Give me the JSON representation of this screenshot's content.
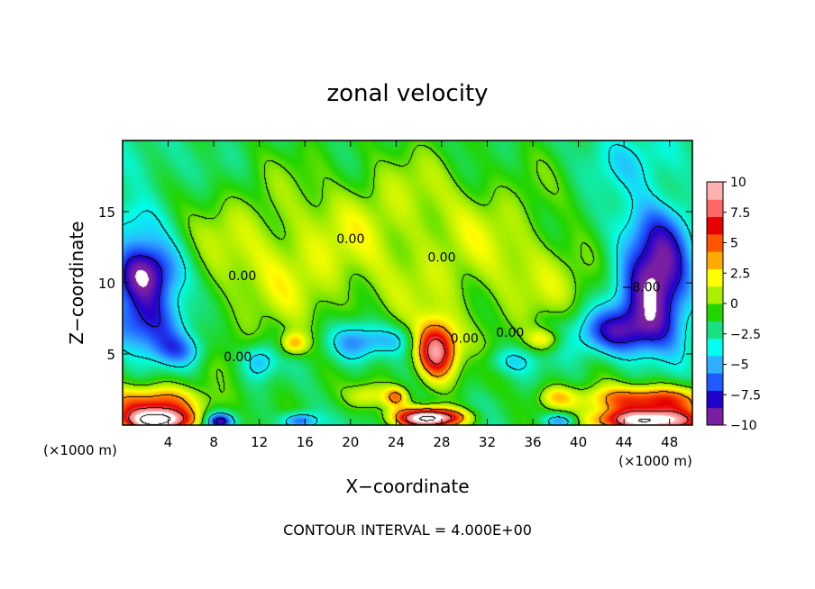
{
  "chart_data": {
    "type": "heatmap",
    "title": "zonal velocity",
    "xlabel": "X−coordinate",
    "ylabel": "Z−coordinate",
    "x_unit_left": "(×1000 m)",
    "x_unit_right": "(×1000 m)",
    "footer": "CONTOUR INTERVAL = 4.000E+00",
    "xlim": [
      0,
      50
    ],
    "ylim": [
      0,
      20
    ],
    "x_ticks": [
      4,
      8,
      12,
      16,
      20,
      24,
      28,
      32,
      36,
      40,
      44,
      48
    ],
    "x_tick_labels": [
      "4",
      "8",
      "12",
      "16",
      "20",
      "24",
      "28",
      "32",
      "36",
      "40",
      "44",
      "48"
    ],
    "y_ticks": [
      5,
      10,
      15
    ],
    "y_tick_labels": [
      "5",
      "10",
      "15"
    ],
    "colorbar": {
      "range": [
        -10,
        10
      ],
      "ticks": [
        10,
        7.5,
        5,
        2.5,
        0,
        -2.5,
        -5,
        -7.5,
        -10
      ],
      "tick_labels": [
        "10",
        "7.5",
        "5",
        "2.5",
        "0",
        "−2.5",
        "−5",
        "−7.5",
        "−10"
      ],
      "colors": [
        "#7b1fa2",
        "#2200cc",
        "#1e5cff",
        "#2fb0ff",
        "#00ffee",
        "#19e080",
        "#22d400",
        "#aaee00",
        "#ffff00",
        "#ffaa00",
        "#ff5500",
        "#e60000",
        "#ff6666",
        "#ffb0b0"
      ]
    },
    "contour_interval": 4,
    "contour_labels": [
      {
        "text": "0.00",
        "x": 10.5,
        "z": 10.2
      },
      {
        "text": "0.00",
        "x": 20.0,
        "z": 12.8
      },
      {
        "text": "0.00",
        "x": 28.0,
        "z": 11.5
      },
      {
        "text": "0.00",
        "x": 10.1,
        "z": 4.5
      },
      {
        "text": "0.00",
        "x": 30.0,
        "z": 5.8
      },
      {
        "text": "0.00",
        "x": 34.0,
        "z": 6.2
      },
      {
        "text": "−8.00",
        "x": 45.5,
        "z": 9.4
      }
    ],
    "features": [
      {
        "x": 2.0,
        "z": 10.5,
        "rx": 3.5,
        "rz": 2.6,
        "v": -11
      },
      {
        "x": 2.0,
        "z": 7.0,
        "rx": 4.0,
        "rz": 2.0,
        "v": -6
      },
      {
        "x": 5.0,
        "z": 5.2,
        "rx": 2.5,
        "rz": 1.2,
        "v": -4
      },
      {
        "x": 0.5,
        "z": 14.5,
        "rx": 3.0,
        "rz": 1.8,
        "v": -3
      },
      {
        "x": 47.0,
        "z": 10.0,
        "rx": 3.5,
        "rz": 4.0,
        "v": -11.5
      },
      {
        "x": 43.0,
        "z": 6.5,
        "rx": 4.0,
        "rz": 1.8,
        "v": -7
      },
      {
        "x": 45.0,
        "z": 14.0,
        "rx": 5.0,
        "rz": 2.5,
        "v": -3
      },
      {
        "x": 20.5,
        "z": 5.8,
        "rx": 2.5,
        "rz": 1.5,
        "v": -6
      },
      {
        "x": 12.0,
        "z": 4.5,
        "rx": 1.5,
        "rz": 1.2,
        "v": -4
      },
      {
        "x": 24.0,
        "z": 6.0,
        "rx": 2.0,
        "rz": 1.0,
        "v": -2.5
      },
      {
        "x": 34.0,
        "z": 4.5,
        "rx": 2.5,
        "rz": 1.0,
        "v": -3
      },
      {
        "x": 27.5,
        "z": 5.2,
        "rx": 1.8,
        "rz": 2.0,
        "v": 11
      },
      {
        "x": 37.0,
        "z": 6.0,
        "rx": 1.5,
        "rz": 0.8,
        "v": 4
      },
      {
        "x": 15.0,
        "z": 5.7,
        "rx": 1.2,
        "rz": 0.8,
        "v": 5
      },
      {
        "x": 2.5,
        "z": 1.5,
        "rx": 5.0,
        "rz": 1.3,
        "v": 7
      },
      {
        "x": 3.0,
        "z": 0.3,
        "rx": 3.0,
        "rz": 0.8,
        "v": 12
      },
      {
        "x": 46.0,
        "z": 1.8,
        "rx": 6.0,
        "rz": 1.0,
        "v": 8
      },
      {
        "x": 46.0,
        "z": 0.3,
        "rx": 5.0,
        "rz": 0.8,
        "v": 13
      },
      {
        "x": 27.0,
        "z": 0.5,
        "rx": 3.0,
        "rz": 0.7,
        "v": 14
      },
      {
        "x": 8.5,
        "z": 0.3,
        "rx": 1.2,
        "rz": 0.6,
        "v": -7
      },
      {
        "x": 15.5,
        "z": 0.3,
        "rx": 1.5,
        "rz": 0.6,
        "v": -6
      },
      {
        "x": 38.5,
        "z": 0.3,
        "rx": 1.5,
        "rz": 0.6,
        "v": -6
      },
      {
        "x": 21.5,
        "z": 2.0,
        "rx": 2.0,
        "rz": 1.0,
        "v": 4
      },
      {
        "x": 24.0,
        "z": 2.0,
        "rx": 1.0,
        "rz": 0.7,
        "v": 5
      },
      {
        "x": 38.0,
        "z": 2.0,
        "rx": 1.5,
        "rz": 0.8,
        "v": 3
      },
      {
        "x": 25.0,
        "z": 16.0,
        "rx": 9.0,
        "rz": 4.0,
        "v": 1.5
      },
      {
        "x": 14.0,
        "z": 12.0,
        "rx": 5.0,
        "rz": 4.0,
        "v": 1.0
      },
      {
        "x": 35.0,
        "z": 11.0,
        "rx": 4.0,
        "rz": 3.0,
        "v": 0.5
      },
      {
        "x": 46.0,
        "z": 18.5,
        "rx": 6.0,
        "rz": 2.5,
        "v": -2.5
      },
      {
        "x": 2.0,
        "z": 18.0,
        "rx": 4.0,
        "rz": 2.5,
        "v": -2.0
      }
    ]
  }
}
